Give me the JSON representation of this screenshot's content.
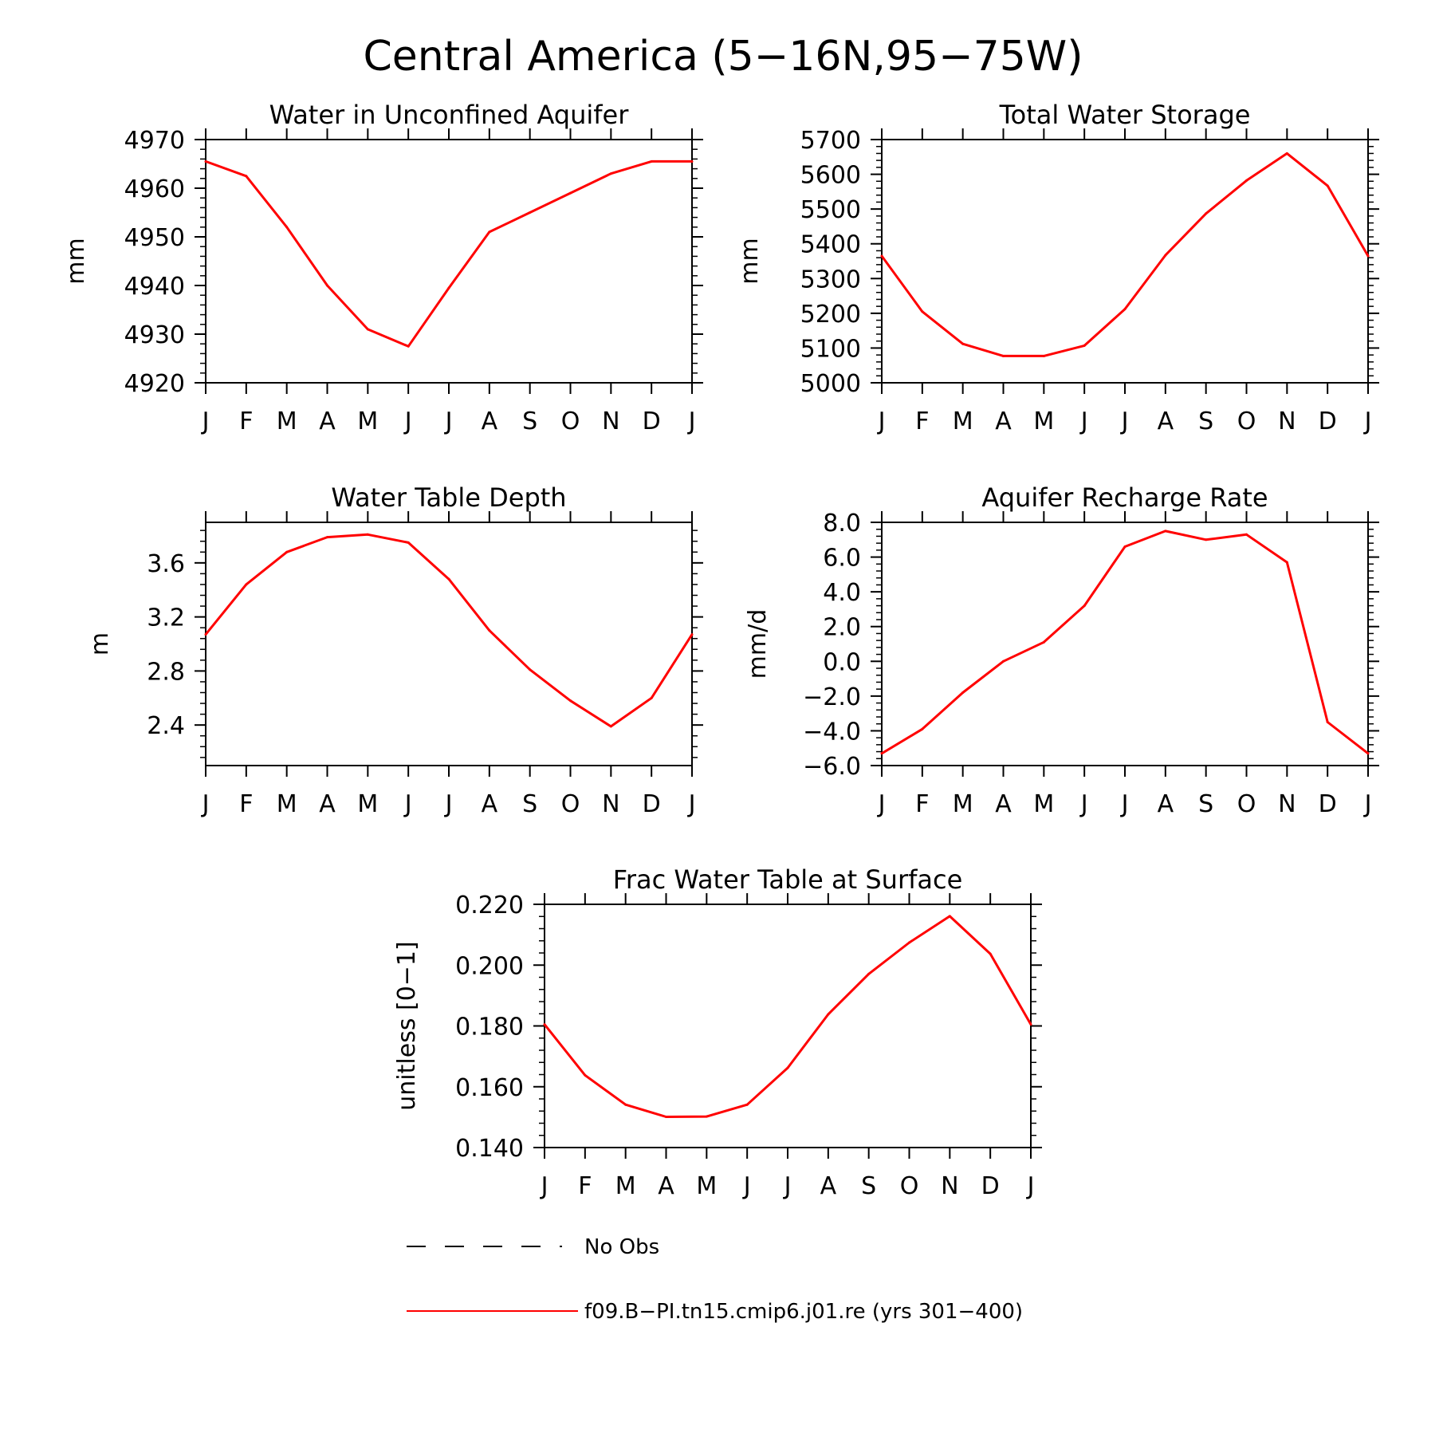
{
  "figure": {
    "title": "Central America (5−16N,95−75W)"
  },
  "colors": {
    "model": "#ff0000",
    "axes": "#000000",
    "obs": "#000000"
  },
  "chart_data": [
    {
      "type": "line",
      "title": "Water in Unconfined Aquifer",
      "ylabel": "mm",
      "xlabel": "",
      "ylim": [
        4920,
        4970
      ],
      "yticks": [
        "4920",
        "4930",
        "4940",
        "4950",
        "4960",
        "4970"
      ],
      "grid": false,
      "categories": [
        "J",
        "F",
        "M",
        "A",
        "M",
        "J",
        "J",
        "A",
        "S",
        "O",
        "N",
        "D",
        "J"
      ],
      "series": [
        {
          "name": "f09.B−PI.tn15.cmip6.j01.re (yrs 301−400)",
          "values": [
            4965.5,
            4962.5,
            4952,
            4940,
            4931,
            4927.5,
            4939.5,
            4951,
            4955,
            4959,
            4963,
            4965.5,
            4965.5
          ]
        }
      ]
    },
    {
      "type": "line",
      "title": "Total Water Storage",
      "ylabel": "mm",
      "xlabel": "",
      "ylim": [
        5000,
        5700
      ],
      "yticks": [
        "5000",
        "5100",
        "5200",
        "5300",
        "5400",
        "5500",
        "5600",
        "5700"
      ],
      "grid": false,
      "categories": [
        "J",
        "F",
        "M",
        "A",
        "M",
        "J",
        "J",
        "A",
        "S",
        "O",
        "N",
        "D",
        "J"
      ],
      "series": [
        {
          "name": "f09.B−PI.tn15.cmip6.j01.re (yrs 301−400)",
          "values": [
            5365,
            5205,
            5112,
            5077,
            5077,
            5107,
            5212,
            5367,
            5487,
            5582,
            5660,
            5567,
            5365
          ]
        }
      ]
    },
    {
      "type": "line",
      "title": "Water Table Depth",
      "ylabel": "m",
      "xlabel": "",
      "ylim": [
        2.1,
        3.9
      ],
      "yticks": [
        "2.4",
        "2.8",
        "3.2",
        "3.6"
      ],
      "grid": false,
      "categories": [
        "J",
        "F",
        "M",
        "A",
        "M",
        "J",
        "J",
        "A",
        "S",
        "O",
        "N",
        "D",
        "J"
      ],
      "series": [
        {
          "name": "f09.B−PI.tn15.cmip6.j01.re (yrs 301−400)",
          "values": [
            3.07,
            3.44,
            3.68,
            3.79,
            3.81,
            3.75,
            3.48,
            3.1,
            2.81,
            2.58,
            2.39,
            2.6,
            3.07
          ]
        }
      ]
    },
    {
      "type": "line",
      "title": "Aquifer Recharge Rate",
      "ylabel": "mm/d",
      "xlabel": "",
      "ylim": [
        -6,
        8
      ],
      "yticks": [
        "-6.0",
        "-4.0",
        "-2.0",
        "0.0",
        "2.0",
        "4.0",
        "6.0",
        "8.0"
      ],
      "grid": false,
      "categories": [
        "J",
        "F",
        "M",
        "A",
        "M",
        "J",
        "J",
        "A",
        "S",
        "O",
        "N",
        "D",
        "J"
      ],
      "series": [
        {
          "name": "f09.B−PI.tn15.cmip6.j01.re (yrs 301−400)",
          "values": [
            -5.3,
            -3.9,
            -1.8,
            0.0,
            1.1,
            3.2,
            6.6,
            7.5,
            7.0,
            7.3,
            5.7,
            -3.5,
            -5.3
          ]
        }
      ]
    },
    {
      "type": "line",
      "title": "Frac Water Table at Surface",
      "ylabel": "unitless [0−1]",
      "xlabel": "",
      "ylim": [
        0.14,
        0.22
      ],
      "yticks": [
        "0.140",
        "0.160",
        "0.180",
        "0.200",
        "0.220"
      ],
      "grid": false,
      "categories": [
        "J",
        "F",
        "M",
        "A",
        "M",
        "J",
        "J",
        "A",
        "S",
        "O",
        "N",
        "D",
        "J"
      ],
      "series": [
        {
          "name": "f09.B−PI.tn15.cmip6.j01.re (yrs 301−400)",
          "values": [
            0.1805,
            0.1638,
            0.1541,
            0.1501,
            0.1502,
            0.1541,
            0.1662,
            0.1838,
            0.1971,
            0.2074,
            0.2161,
            0.2037,
            0.1805
          ]
        }
      ]
    }
  ],
  "legend": {
    "items": [
      {
        "label": "No Obs",
        "style": "dashed",
        "color": "#000000"
      },
      {
        "label": "f09.B−PI.tn15.cmip6.j01.re (yrs 301−400)",
        "style": "solid",
        "color": "#ff0000"
      }
    ]
  }
}
